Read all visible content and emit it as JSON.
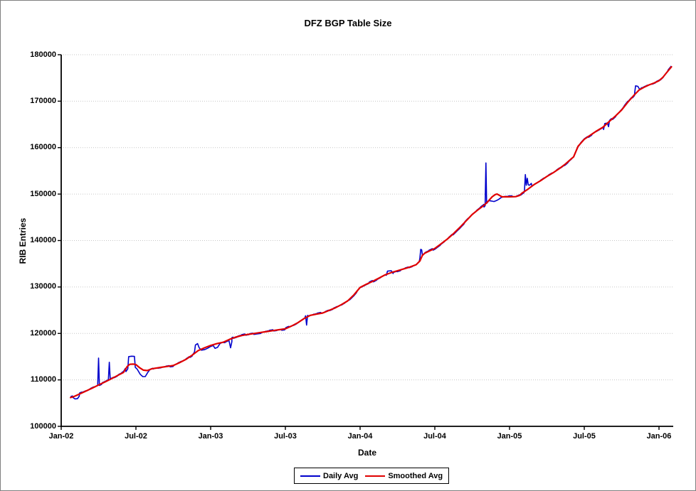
{
  "chart_data": {
    "type": "line",
    "title": "DFZ BGP Table Size",
    "xlabel": "Date",
    "ylabel": "RIB Entries",
    "ylim": [
      100000,
      180000
    ],
    "yticks": [
      100000,
      110000,
      120000,
      130000,
      140000,
      150000,
      160000,
      170000,
      180000
    ],
    "xticks": [
      {
        "label": "Jan-02",
        "m": 0
      },
      {
        "label": "Jul-02",
        "m": 6
      },
      {
        "label": "Jan-03",
        "m": 12
      },
      {
        "label": "Jul-03",
        "m": 18
      },
      {
        "label": "Jan-04",
        "m": 24
      },
      {
        "label": "Jul-04",
        "m": 30
      },
      {
        "label": "Jan-05",
        "m": 36
      },
      {
        "label": "Jul-05",
        "m": 42
      },
      {
        "label": "Jan-06",
        "m": 48
      }
    ],
    "grid": "horizontal-dotted",
    "legend_position": "bottom-center",
    "series": [
      {
        "name": "Daily Avg",
        "color": "#0000CC"
      },
      {
        "name": "Smoothed Avg",
        "color": "#E00000"
      }
    ],
    "smoothed_points_month_value": [
      [
        0.75,
        106200
      ],
      [
        1,
        106400
      ],
      [
        1.5,
        107000
      ],
      [
        2,
        107600
      ],
      [
        2.5,
        108250
      ],
      [
        3,
        108900
      ],
      [
        3.5,
        109550
      ],
      [
        4,
        110200
      ],
      [
        4.5,
        110900
      ],
      [
        5,
        111600
      ],
      [
        5.3,
        112900
      ],
      [
        5.5,
        113350
      ],
      [
        5.8,
        113400
      ],
      [
        6,
        113300
      ],
      [
        6.3,
        112600
      ],
      [
        6.6,
        112100
      ],
      [
        6.9,
        112000
      ],
      [
        7.3,
        112400
      ],
      [
        8,
        112700
      ],
      [
        8.5,
        112900
      ],
      [
        9,
        113100
      ],
      [
        9.5,
        113700
      ],
      [
        10,
        114400
      ],
      [
        10.5,
        115300
      ],
      [
        11,
        116300
      ],
      [
        11.5,
        116900
      ],
      [
        12,
        117400
      ],
      [
        12.5,
        117800
      ],
      [
        13,
        118100
      ],
      [
        13.5,
        118700
      ],
      [
        14,
        119200
      ],
      [
        14.5,
        119550
      ],
      [
        15,
        119800
      ],
      [
        15.5,
        120000
      ],
      [
        16,
        120200
      ],
      [
        16.5,
        120400
      ],
      [
        17,
        120600
      ],
      [
        17.5,
        120800
      ],
      [
        18,
        121000
      ],
      [
        18.5,
        121600
      ],
      [
        19,
        122300
      ],
      [
        19.5,
        123200
      ],
      [
        20,
        123900
      ],
      [
        20.5,
        124150
      ],
      [
        21,
        124400
      ],
      [
        21.5,
        124950
      ],
      [
        22,
        125500
      ],
      [
        22.5,
        126200
      ],
      [
        23,
        127000
      ],
      [
        23.5,
        128300
      ],
      [
        24,
        129900
      ],
      [
        24.5,
        130600
      ],
      [
        25,
        131200
      ],
      [
        25.5,
        131900
      ],
      [
        26,
        132600
      ],
      [
        26.5,
        133100
      ],
      [
        27,
        133500
      ],
      [
        27.5,
        133900
      ],
      [
        28,
        134300
      ],
      [
        28.5,
        134800
      ],
      [
        28.8,
        135600
      ],
      [
        29,
        136800
      ],
      [
        29.2,
        137300
      ],
      [
        29.6,
        137800
      ],
      [
        30,
        138300
      ],
      [
        30.5,
        139300
      ],
      [
        31,
        140300
      ],
      [
        31.5,
        141500
      ],
      [
        32,
        142800
      ],
      [
        32.5,
        144200
      ],
      [
        33,
        145600
      ],
      [
        33.5,
        146700
      ],
      [
        34,
        147700
      ],
      [
        34.3,
        148500
      ],
      [
        34.6,
        149400
      ],
      [
        34.85,
        149900
      ],
      [
        35,
        150000
      ],
      [
        35.2,
        149700
      ],
      [
        35.4,
        149400
      ],
      [
        36,
        149400
      ],
      [
        36.5,
        149450
      ],
      [
        36.8,
        149700
      ],
      [
        37,
        150200
      ],
      [
        37.5,
        151100
      ],
      [
        38,
        152100
      ],
      [
        38.5,
        152900
      ],
      [
        39,
        153800
      ],
      [
        39.5,
        154600
      ],
      [
        40,
        155500
      ],
      [
        40.5,
        156500
      ],
      [
        41,
        157700
      ],
      [
        41.14,
        158000
      ],
      [
        41.5,
        160300
      ],
      [
        42,
        161800
      ],
      [
        42.5,
        162700
      ],
      [
        43,
        163600
      ],
      [
        43.5,
        164400
      ],
      [
        44,
        165600
      ],
      [
        44.5,
        166800
      ],
      [
        45,
        168100
      ],
      [
        45.5,
        169800
      ],
      [
        46,
        171300
      ],
      [
        46.4,
        172400
      ],
      [
        46.8,
        173000
      ],
      [
        47.2,
        173500
      ],
      [
        47.6,
        173900
      ],
      [
        48,
        174400
      ],
      [
        48.3,
        175100
      ],
      [
        48.6,
        176100
      ],
      [
        49,
        177400
      ]
    ],
    "daily_jitter": {
      "amplitude": 220,
      "hold": 4,
      "step": 0.08,
      "seed": 42
    },
    "daily_overrides": [
      [
        [
          0.95,
          106200
        ],
        [
          1.1,
          105900
        ],
        [
          1.3,
          105950
        ],
        [
          1.45,
          106500
        ]
      ],
      [
        [
          2.93,
          108900
        ],
        [
          3.0,
          114700
        ],
        [
          3.06,
          109200
        ]
      ],
      [
        [
          3.79,
          110100
        ],
        [
          3.86,
          113800
        ],
        [
          3.93,
          110400
        ]
      ],
      [
        [
          5.2,
          111800
        ],
        [
          5.35,
          112400
        ],
        [
          5.42,
          115000
        ],
        [
          5.65,
          115100
        ],
        [
          5.88,
          115050
        ],
        [
          5.95,
          112700
        ],
        [
          6.1,
          112300
        ],
        [
          6.35,
          111200
        ],
        [
          6.55,
          110700
        ],
        [
          6.75,
          110700
        ],
        [
          6.95,
          111600
        ],
        [
          7.15,
          112300
        ],
        [
          7.35,
          112500
        ]
      ],
      [
        [
          10.55,
          115400
        ],
        [
          10.7,
          116000
        ],
        [
          10.78,
          117500
        ],
        [
          10.95,
          117800
        ],
        [
          11.08,
          116900
        ],
        [
          11.25,
          116400
        ],
        [
          11.5,
          116500
        ],
        [
          11.75,
          116800
        ],
        [
          12.0,
          117200
        ],
        [
          12.2,
          117400
        ],
        [
          12.35,
          116800
        ],
        [
          12.55,
          117000
        ],
        [
          12.75,
          117800
        ],
        [
          12.95,
          118100
        ],
        [
          13.15,
          118000
        ]
      ],
      [
        [
          13.5,
          118100
        ],
        [
          13.6,
          116900
        ],
        [
          13.7,
          118200
        ]
      ],
      [
        [
          19.62,
          123800
        ],
        [
          19.7,
          121800
        ],
        [
          19.78,
          123900
        ]
      ],
      [
        [
          26.1,
          132500
        ],
        [
          26.2,
          133400
        ],
        [
          26.5,
          133500
        ],
        [
          26.65,
          132900
        ]
      ],
      [
        [
          28.8,
          136200
        ],
        [
          28.87,
          138100
        ],
        [
          28.94,
          138000
        ],
        [
          29.0,
          136900
        ]
      ],
      [
        [
          33.95,
          147200
        ],
        [
          34.04,
          147500
        ],
        [
          34.1,
          156700
        ],
        [
          34.16,
          148000
        ],
        [
          34.35,
          148600
        ],
        [
          34.55,
          148500
        ],
        [
          34.75,
          148400
        ],
        [
          34.95,
          148600
        ],
        [
          35.15,
          148900
        ],
        [
          35.35,
          149300
        ],
        [
          35.55,
          149400
        ]
      ],
      [
        [
          37.2,
          150800
        ],
        [
          37.27,
          154200
        ],
        [
          37.34,
          151900
        ],
        [
          37.42,
          153400
        ],
        [
          37.5,
          152000
        ],
        [
          37.6,
          151900
        ],
        [
          37.75,
          152300
        ]
      ],
      [
        [
          43.55,
          163900
        ],
        [
          43.65,
          165200
        ],
        [
          43.85,
          165300
        ],
        [
          43.95,
          164500
        ]
      ],
      [
        [
          46.05,
          171900
        ],
        [
          46.12,
          173300
        ],
        [
          46.3,
          173200
        ],
        [
          46.45,
          172500
        ],
        [
          46.6,
          172900
        ]
      ]
    ],
    "annotations": []
  }
}
